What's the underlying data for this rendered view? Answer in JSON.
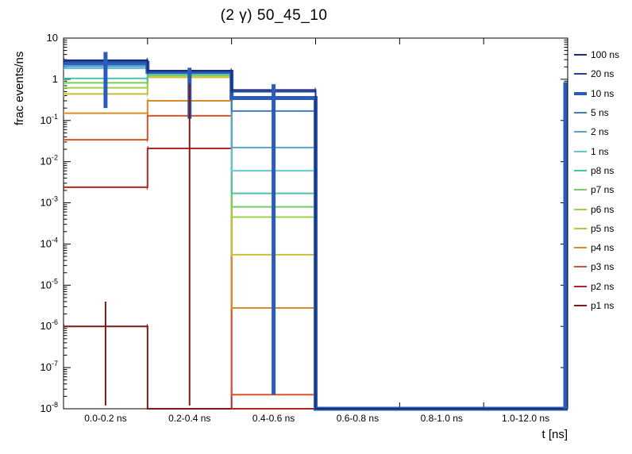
{
  "chart_data": {
    "type": "step-histogram",
    "title": "(2 γ) 50_45_10",
    "x_label": "t [ns]",
    "y_label": "frac events/ns",
    "y_scale": "log",
    "y_min": 1e-08,
    "y_max": 10,
    "grid": false,
    "legend_position": "right-outside",
    "categories": [
      "0.0-0.2 ns",
      "0.2-0.4 ns",
      "0.4-0.6 ns",
      "0.6-0.8 ns",
      "0.8-1.0 ns",
      "1.0-12.0 ns"
    ],
    "y_tick_exponents": [
      1,
      0,
      -1,
      -2,
      -3,
      -4,
      -5,
      -6,
      -7,
      -8
    ],
    "series": [
      {
        "name": "100 ns",
        "color": "#1a2f78",
        "width": 2,
        "values": [
          2.9,
          1.62,
          0.55,
          1e-08,
          1e-08,
          1e-08
        ]
      },
      {
        "name": "20 ns",
        "color": "#20429c",
        "width": 2,
        "values": [
          2.75,
          1.58,
          0.5,
          1e-08,
          1e-08,
          1e-08
        ]
      },
      {
        "name": "10 ns",
        "color": "#2a5cb8",
        "width": 5,
        "values": [
          2.5,
          1.52,
          0.35,
          1e-08,
          1e-08,
          1e-08
        ]
      },
      {
        "name": "5 ns",
        "color": "#3a7fc2",
        "width": 2,
        "values": [
          2.25,
          1.47,
          0.17,
          1e-08,
          1e-08,
          1e-08
        ]
      },
      {
        "name": "2 ns",
        "color": "#54a6cd",
        "width": 2,
        "values": [
          2.05,
          1.42,
          0.022,
          1e-08,
          1e-08,
          1e-08
        ]
      },
      {
        "name": "1 ns",
        "color": "#67c2d6",
        "width": 2,
        "values": [
          1.85,
          1.38,
          0.006,
          1e-08,
          1e-08,
          1e-08
        ]
      },
      {
        "name": "p8 ns",
        "color": "#4cc3a8",
        "width": 2,
        "values": [
          1.05,
          1.33,
          0.0017,
          1e-08,
          1e-08,
          1e-08
        ]
      },
      {
        "name": "p7 ns",
        "color": "#74cc62",
        "width": 2,
        "values": [
          0.82,
          1.28,
          0.0008,
          1e-08,
          1e-08,
          1e-08
        ]
      },
      {
        "name": "p6 ns",
        "color": "#a2cf46",
        "width": 2,
        "values": [
          0.62,
          1.22,
          0.00045,
          1e-08,
          1e-08,
          1e-08
        ]
      },
      {
        "name": "p5 ns",
        "color": "#c9bf34",
        "width": 2,
        "values": [
          0.44,
          1.12,
          5.5e-05,
          1e-08,
          1e-08,
          1e-08
        ]
      },
      {
        "name": "p4 ns",
        "color": "#d98a2b",
        "width": 2,
        "values": [
          0.15,
          0.3,
          2.8e-06,
          1e-08,
          1e-08,
          1e-08
        ]
      },
      {
        "name": "p3 ns",
        "color": "#da5228",
        "width": 2,
        "values": [
          0.034,
          0.13,
          2.2e-08,
          1e-08,
          1e-08,
          1e-08
        ]
      },
      {
        "name": "p2 ns",
        "color": "#b02823",
        "width": 2,
        "values": [
          0.0024,
          0.021,
          1e-08,
          1e-08,
          1e-08,
          1e-08
        ]
      },
      {
        "name": "p1 ns",
        "color": "#7a1a15",
        "width": 2,
        "values": [
          1e-06,
          1e-08,
          1e-08,
          1e-08,
          1e-08,
          1e-08
        ]
      }
    ],
    "error_bars": [
      {
        "series": "10 ns",
        "bin": 0,
        "low": 0.2,
        "high": 4.6
      },
      {
        "series": "10 ns",
        "bin": 1,
        "low": 0.11,
        "high": 1.9
      },
      {
        "series": "10 ns",
        "bin": 2,
        "low": 2.2e-08,
        "high": 0.76
      },
      {
        "series": "p1 ns",
        "bin": 0,
        "low": 1.2e-08,
        "high": 4e-06
      },
      {
        "series": "p1 ns",
        "bin": 1,
        "low": 1.2e-08,
        "high": 0.8
      }
    ],
    "annotations": [
      {
        "type": "edge-vline",
        "series": "10 ns",
        "x": "right",
        "low": 1e-08,
        "high": 0.85
      }
    ]
  }
}
